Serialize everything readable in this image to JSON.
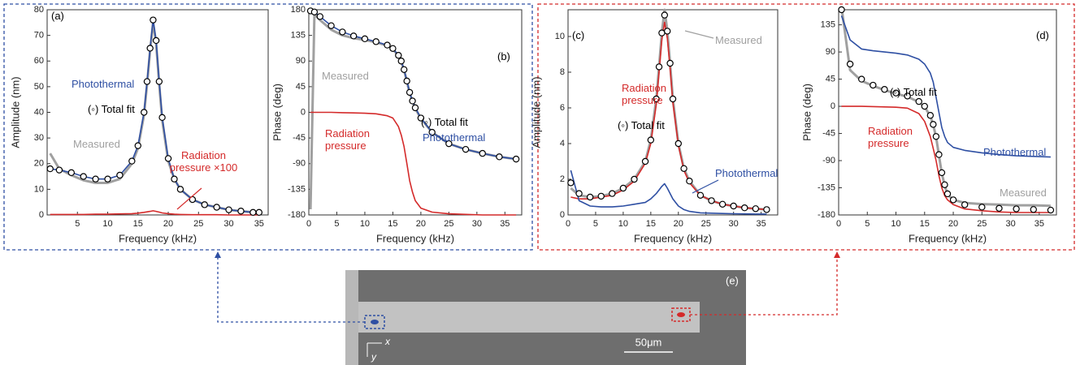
{
  "chart_data": [
    {
      "type": "line",
      "label": "(a)",
      "x_label": "Frequency (kHz)",
      "y_label": "Amplitude (nm)",
      "xlim": [
        0,
        36.5
      ],
      "xticks": [
        5,
        10,
        15,
        20,
        25,
        30,
        35
      ],
      "ylim": [
        0,
        80
      ],
      "yticks": [
        0,
        10,
        20,
        30,
        40,
        50,
        60,
        70,
        80
      ],
      "x": [
        0.5,
        2,
        4,
        6,
        8,
        10,
        12,
        14,
        15,
        16,
        16.5,
        17,
        17.5,
        18,
        18.5,
        19,
        20,
        21,
        22,
        24,
        26,
        28,
        30,
        32,
        34,
        35
      ],
      "series": [
        {
          "name": "Measured",
          "color": "#a0a0a0",
          "values": [
            24,
            18,
            15.5,
            13.5,
            12.5,
            12.5,
            14,
            20,
            26,
            39,
            51,
            64,
            75,
            67,
            51,
            37,
            21,
            14,
            10,
            6,
            4,
            3,
            2,
            1.5,
            1,
            1
          ]
        },
        {
          "name": "Radiation pressure ×100",
          "color": "#d42a2a",
          "values": [
            0.2,
            0.2,
            0.2,
            0.2,
            0.3,
            0.3,
            0.4,
            0.5,
            0.7,
            1,
            1.2,
            1.4,
            1.6,
            1.4,
            1.1,
            0.8,
            0.5,
            0.3,
            0.2,
            0.1,
            0.1,
            0.1,
            0,
            0,
            0,
            0
          ]
        },
        {
          "name": "Photothermal",
          "color": "#2e4fa3",
          "values": [
            18,
            17.5,
            16.5,
            15,
            14,
            14,
            15.5,
            21,
            27,
            40,
            52,
            65,
            76,
            68,
            52,
            38,
            22,
            14,
            10,
            6,
            4,
            3,
            2,
            1.5,
            1,
            1
          ]
        },
        {
          "name": "(◦) Total fit",
          "color": "#000000",
          "marker": "circle",
          "values": [
            18,
            17.5,
            16.5,
            15,
            14,
            14,
            15.5,
            21,
            27,
            40,
            52,
            65,
            76,
            68,
            52,
            38,
            22,
            14,
            10,
            6,
            4,
            3,
            2,
            1.5,
            1,
            1
          ]
        }
      ]
    },
    {
      "type": "line",
      "label": "(b)",
      "x_label": "Frequency (kHz)",
      "y_label": "Phase (deg)",
      "xlim": [
        0,
        38
      ],
      "xticks": [
        0,
        5,
        10,
        15,
        20,
        25,
        30,
        35
      ],
      "ylim": [
        -180,
        180
      ],
      "yticks": [
        -180,
        -135,
        -90,
        -45,
        0,
        45,
        90,
        135,
        180
      ],
      "x": [
        0.3,
        1,
        2,
        4,
        6,
        8,
        10,
        12,
        14,
        15,
        16,
        16.5,
        17,
        17.5,
        18,
        18.5,
        19,
        20,
        22,
        25,
        28,
        31,
        34,
        37
      ],
      "series": [
        {
          "name": "Measured",
          "color": "#a0a0a0",
          "values": [
            -170,
            172,
            162,
            145,
            135,
            130,
            127,
            123,
            117,
            111,
            99,
            89,
            74,
            54,
            34,
            19,
            7,
            -11,
            -35,
            -55,
            -65,
            -72,
            -78,
            -82
          ]
        },
        {
          "name": "Radiation pressure",
          "color": "#d42a2a",
          "values": [
            0,
            0,
            0,
            0,
            -0.5,
            -1,
            -1.5,
            -2.5,
            -6,
            -10,
            -25,
            -40,
            -60,
            -90,
            -120,
            -140,
            -155,
            -168,
            -175,
            -178,
            -179,
            -180,
            -180,
            -180
          ]
        },
        {
          "name": "Photothermal",
          "color": "#2e4fa3",
          "values": [
            178,
            176,
            168,
            152,
            141,
            134,
            129,
            124,
            118,
            112,
            100,
            90,
            75,
            55,
            35,
            20,
            8,
            -10,
            -35,
            -55,
            -65,
            -72,
            -78,
            -82
          ]
        },
        {
          "name": "(◦) Total fit",
          "color": "#000000",
          "marker": "circle",
          "values": [
            178,
            176,
            168,
            152,
            141,
            134,
            129,
            124,
            118,
            112,
            100,
            90,
            75,
            55,
            35,
            20,
            8,
            -10,
            -35,
            -55,
            -65,
            -72,
            -78,
            -82
          ]
        }
      ]
    },
    {
      "type": "line",
      "label": "(c)",
      "x_label": "Frequency (kHz)",
      "y_label": "Amplitude (nm)",
      "xlim": [
        0,
        38
      ],
      "xticks": [
        0,
        5,
        10,
        15,
        20,
        25,
        30,
        35
      ],
      "ylim": [
        0,
        11.5
      ],
      "yticks": [
        0,
        2,
        4,
        6,
        8,
        10
      ],
      "x": [
        0.5,
        2,
        4,
        6,
        8,
        10,
        12,
        14,
        15,
        16,
        16.5,
        17,
        17.5,
        18,
        18.5,
        19,
        20,
        21,
        22,
        24,
        26,
        28,
        30,
        32,
        34,
        36
      ],
      "series": [
        {
          "name": "Measured",
          "color": "#a0a0a0",
          "values": [
            1.5,
            1.1,
            1,
            1.05,
            1.2,
            1.5,
            2,
            3,
            4.2,
            6.5,
            8.3,
            10.2,
            11.5,
            10.3,
            8.5,
            6.5,
            4,
            2.6,
            1.9,
            1.1,
            0.8,
            0.6,
            0.5,
            0.4,
            0.35,
            0.3
          ]
        },
        {
          "name": "Radiation pressure",
          "color": "#d42a2a",
          "values": [
            1,
            0.9,
            0.9,
            1,
            1.1,
            1.4,
            1.9,
            2.9,
            4,
            6.2,
            8,
            9.8,
            10.8,
            9.9,
            8.2,
            6.3,
            3.9,
            2.5,
            1.8,
            1.1,
            0.8,
            0.6,
            0.5,
            0.4,
            0.35,
            0.3
          ]
        },
        {
          "name": "Photothermal",
          "color": "#2e4fa3",
          "values": [
            2.5,
            0.8,
            0.5,
            0.45,
            0.45,
            0.5,
            0.6,
            0.7,
            0.9,
            1.2,
            1.4,
            1.6,
            1.75,
            1.5,
            1.2,
            0.9,
            0.5,
            0.3,
            0.2,
            0.12,
            0.1,
            0.08,
            0.07,
            0.06,
            0.05,
            0.05
          ]
        },
        {
          "name": "(◦) Total fit",
          "color": "#000000",
          "marker": "circle",
          "values": [
            1.8,
            1.2,
            1,
            1.05,
            1.2,
            1.5,
            2,
            3,
            4.2,
            6.5,
            8.3,
            10.2,
            11.2,
            10.3,
            8.5,
            6.5,
            4,
            2.6,
            1.9,
            1.1,
            0.8,
            0.6,
            0.5,
            0.4,
            0.35,
            0.3
          ]
        }
      ]
    },
    {
      "type": "line",
      "label": "(d)",
      "x_label": "Frequency (kHz)",
      "y_label": "Phase (deg)",
      "xlim": [
        0,
        38
      ],
      "xticks": [
        0,
        5,
        10,
        15,
        20,
        25,
        30,
        35
      ],
      "ylim": [
        -180,
        160
      ],
      "yticks": [
        -180,
        -135,
        -90,
        -45,
        0,
        45,
        90,
        135
      ],
      "x": [
        0.5,
        2,
        4,
        6,
        8,
        10,
        12,
        14,
        15,
        16,
        16.5,
        17,
        17.5,
        18,
        18.5,
        19,
        20,
        22,
        25,
        28,
        31,
        34,
        37
      ],
      "series": [
        {
          "name": "Measured",
          "color": "#a0a0a0",
          "values": [
            165,
            60,
            42,
            34,
            27,
            21,
            16,
            7,
            -1,
            -16,
            -31,
            -51,
            -81,
            -111,
            -131,
            -146,
            -155,
            -160,
            -162,
            -163,
            -164,
            -164,
            -165
          ]
        },
        {
          "name": "Radiation pressure",
          "color": "#d42a2a",
          "values": [
            0,
            0,
            0,
            -0.5,
            -1,
            -1.5,
            -3,
            -12,
            -25,
            -50,
            -70,
            -90,
            -115,
            -135,
            -148,
            -155,
            -163,
            -170,
            -173,
            -175,
            -176,
            -176,
            -176
          ]
        },
        {
          "name": "Photothermal",
          "color": "#2e4fa3",
          "values": [
            150,
            110,
            95,
            92,
            90,
            88,
            85,
            78,
            70,
            55,
            40,
            15,
            -10,
            -35,
            -50,
            -60,
            -68,
            -73,
            -77,
            -80,
            -82,
            -83,
            -84
          ]
        },
        {
          "name": "(◦) Total fit",
          "color": "#000000",
          "marker": "circle",
          "values": [
            160,
            70,
            45,
            35,
            28,
            22,
            17,
            8,
            0,
            -15,
            -30,
            -50,
            -80,
            -110,
            -130,
            -145,
            -155,
            -163,
            -167,
            -169,
            -170,
            -171,
            -172
          ]
        }
      ]
    }
  ],
  "image_panel": {
    "label": "(e)",
    "x_axis": "x",
    "y_axis": "y",
    "scale_bar": "50μm"
  }
}
